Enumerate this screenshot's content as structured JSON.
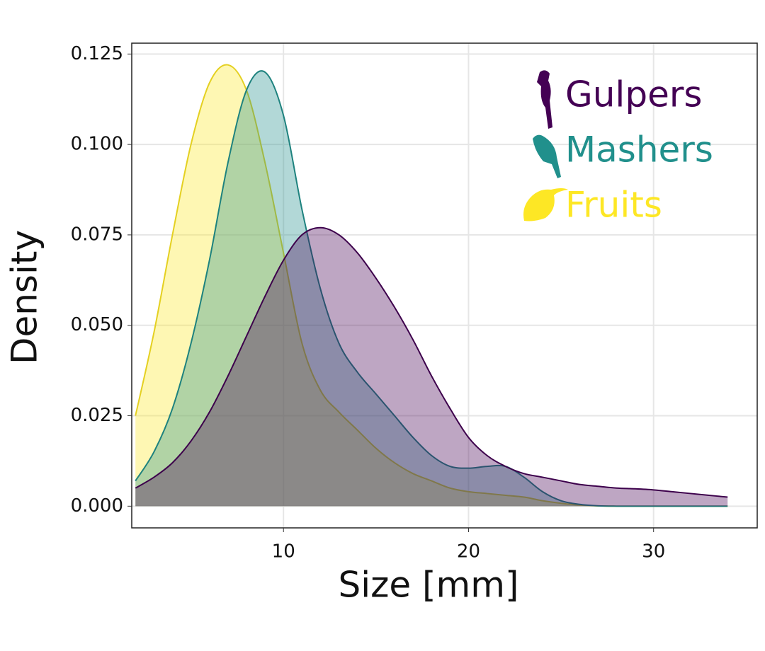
{
  "chart_data": {
    "type": "area",
    "x_label": "Size [mm]",
    "y_label": "Density",
    "x": [
      2,
      3,
      4,
      5,
      6,
      7,
      8,
      9,
      10,
      11,
      12,
      13,
      14,
      15,
      16,
      17,
      18,
      19,
      20,
      21,
      22,
      23,
      24,
      25,
      26,
      27,
      28,
      29,
      30,
      31,
      32,
      33,
      34
    ],
    "series": [
      {
        "name": "Gulpers",
        "color": "#440154",
        "values": [
          0.005,
          0.008,
          0.012,
          0.018,
          0.026,
          0.036,
          0.047,
          0.058,
          0.068,
          0.075,
          0.077,
          0.075,
          0.07,
          0.063,
          0.055,
          0.046,
          0.036,
          0.027,
          0.019,
          0.014,
          0.011,
          0.009,
          0.008,
          0.007,
          0.006,
          0.0055,
          0.005,
          0.0048,
          0.0045,
          0.004,
          0.0035,
          0.003,
          0.0025
        ]
      },
      {
        "name": "Mashers",
        "color": "#21908c",
        "values": [
          0.007,
          0.015,
          0.027,
          0.045,
          0.068,
          0.095,
          0.115,
          0.12,
          0.108,
          0.082,
          0.06,
          0.045,
          0.037,
          0.031,
          0.025,
          0.019,
          0.014,
          0.011,
          0.0105,
          0.011,
          0.011,
          0.008,
          0.004,
          0.0015,
          0.0005,
          0.0001,
          0,
          0,
          0,
          0,
          0,
          0,
          0
        ]
      },
      {
        "name": "Fruits",
        "color": "#fde725",
        "values": [
          0.025,
          0.048,
          0.075,
          0.1,
          0.117,
          0.122,
          0.115,
          0.095,
          0.07,
          0.045,
          0.032,
          0.026,
          0.021,
          0.016,
          0.012,
          0.009,
          0.007,
          0.005,
          0.004,
          0.0035,
          0.003,
          0.0025,
          0.0015,
          0.0008,
          0.0003,
          0.0001,
          0,
          0,
          0,
          0,
          0,
          0,
          0
        ]
      }
    ],
    "xlim": [
      1.8,
      35.6
    ],
    "ylim": [
      -0.006,
      0.128
    ],
    "xticks": [
      10,
      20,
      30
    ],
    "yticks": [
      {
        "value": 0,
        "label": "0.000"
      },
      {
        "value": 0.025,
        "label": "0.025"
      },
      {
        "value": 0.05,
        "label": "0.050"
      },
      {
        "value": 0.075,
        "label": "0.075"
      },
      {
        "value": 0.1,
        "label": "0.100"
      },
      {
        "value": 0.125,
        "label": "0.125"
      }
    ],
    "grid": true,
    "legend": "top-right"
  }
}
